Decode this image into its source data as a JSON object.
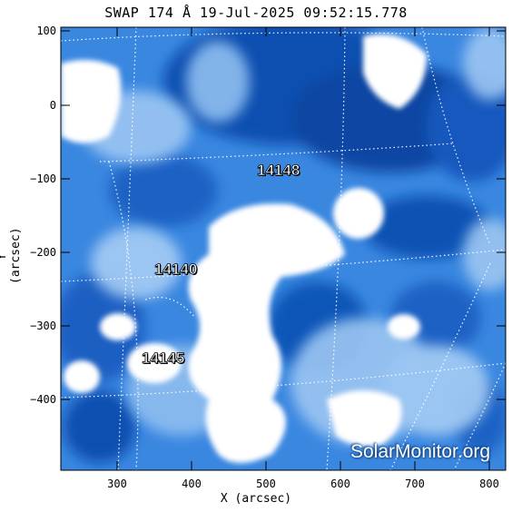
{
  "title": "SWAP 174 Å 19-Jul-2025 09:52:15.778",
  "xlabel": "X (arcsec)",
  "ylabel": "Y (arcsec)",
  "x_ticks": [
    "300",
    "400",
    "500",
    "600",
    "700",
    "800"
  ],
  "y_ticks": [
    "100",
    "0",
    "−100",
    "−200",
    "−300",
    "−400"
  ],
  "regions": [
    {
      "label": "14148"
    },
    {
      "label": "14140"
    },
    {
      "label": "14145"
    }
  ],
  "watermark": "SolarMonitor.org",
  "colors": {
    "deep_blue": "#0b4fb0",
    "mid_blue": "#3a87e0",
    "light_blue": "#9cc6f2",
    "white": "#ffffff"
  }
}
